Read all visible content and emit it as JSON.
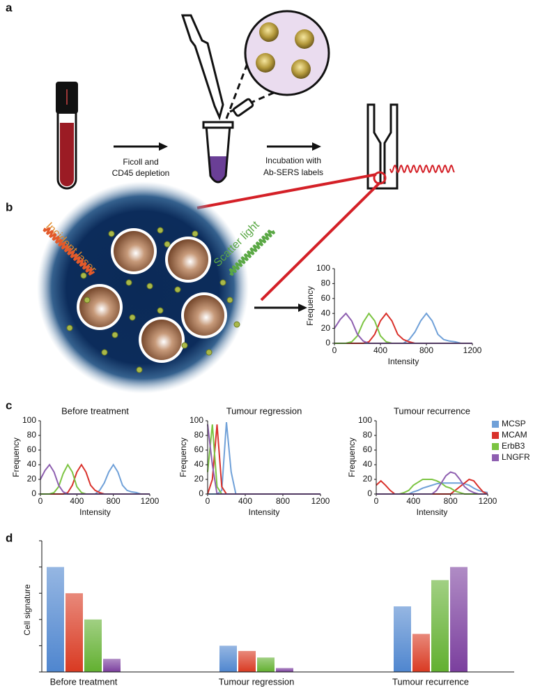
{
  "diagram": {
    "panel_labels": [
      "a",
      "b",
      "c",
      "d"
    ],
    "step1": [
      "Ficoll and",
      "CD45 depletion"
    ],
    "step2": [
      "Incubation with",
      "Ab-SERS labels"
    ],
    "incident": "Incident laser",
    "scatter": "Scatter light"
  },
  "chart_data": [
    {
      "type": "line",
      "x": [
        0,
        50,
        100,
        150,
        200,
        250,
        300,
        350,
        400,
        450,
        500,
        550,
        600,
        650,
        700,
        750,
        800,
        850,
        900,
        950,
        1000,
        1050,
        1100,
        1150,
        1200
      ],
      "series": [
        {
          "color": "#6fa0d8",
          "values": [
            0,
            0,
            0,
            0,
            0,
            0,
            0,
            0,
            0,
            0,
            0,
            0,
            0,
            5,
            15,
            30,
            40,
            30,
            12,
            5,
            3,
            2,
            0,
            0,
            0
          ]
        },
        {
          "color": "#d9312b",
          "values": [
            0,
            0,
            0,
            0,
            0,
            0,
            2,
            12,
            30,
            40,
            30,
            12,
            5,
            2,
            0,
            0,
            0,
            0,
            0,
            0,
            0,
            0,
            0,
            0,
            0
          ]
        },
        {
          "color": "#7cc442",
          "values": [
            0,
            0,
            0,
            2,
            10,
            28,
            40,
            30,
            10,
            2,
            0,
            0,
            0,
            0,
            0,
            0,
            0,
            0,
            0,
            0,
            0,
            0,
            0,
            0,
            0
          ]
        },
        {
          "color": "#8e5fb0",
          "values": [
            20,
            32,
            40,
            30,
            12,
            3,
            0,
            0,
            0,
            0,
            0,
            0,
            0,
            0,
            0,
            0,
            0,
            0,
            0,
            0,
            0,
            0,
            0,
            0,
            0
          ]
        }
      ],
      "xlabel": "Intensity",
      "ylabel": "Frequency",
      "xlim": [
        0,
        1200
      ],
      "ylim": [
        0,
        100
      ],
      "xticks": [
        0,
        400,
        800,
        1200
      ],
      "yticks": [
        0,
        20,
        40,
        60,
        80,
        100
      ]
    },
    {
      "type": "line",
      "title": "Before treatment",
      "x": [
        0,
        50,
        100,
        150,
        200,
        250,
        300,
        350,
        400,
        450,
        500,
        550,
        600,
        650,
        700,
        750,
        800,
        850,
        900,
        950,
        1000,
        1050,
        1100,
        1150,
        1200
      ],
      "series": [
        {
          "color": "#6fa0d8",
          "values": [
            0,
            0,
            0,
            0,
            0,
            0,
            0,
            0,
            0,
            0,
            0,
            0,
            0,
            5,
            15,
            30,
            40,
            30,
            12,
            5,
            3,
            2,
            0,
            0,
            0
          ]
        },
        {
          "color": "#d9312b",
          "values": [
            0,
            0,
            0,
            0,
            0,
            0,
            2,
            12,
            30,
            40,
            30,
            12,
            5,
            2,
            0,
            0,
            0,
            0,
            0,
            0,
            0,
            0,
            0,
            0,
            0
          ]
        },
        {
          "color": "#7cc442",
          "values": [
            0,
            0,
            0,
            2,
            10,
            28,
            40,
            30,
            10,
            2,
            0,
            0,
            0,
            0,
            0,
            0,
            0,
            0,
            0,
            0,
            0,
            0,
            0,
            0,
            0
          ]
        },
        {
          "color": "#8e5fb0",
          "values": [
            20,
            32,
            40,
            30,
            12,
            3,
            0,
            0,
            0,
            0,
            0,
            0,
            0,
            0,
            0,
            0,
            0,
            0,
            0,
            0,
            0,
            0,
            0,
            0,
            0
          ]
        }
      ],
      "xlabel": "Intensity",
      "ylabel": "Frequency",
      "xlim": [
        0,
        1200
      ],
      "ylim": [
        0,
        100
      ],
      "xticks": [
        0,
        400,
        800,
        1200
      ],
      "yticks": [
        0,
        20,
        40,
        60,
        80,
        100
      ]
    },
    {
      "type": "line",
      "title": "Tumour regression",
      "x": [
        0,
        50,
        100,
        150,
        200,
        250,
        300,
        350,
        400,
        450,
        500,
        550,
        600,
        650,
        700,
        750,
        800,
        850,
        900,
        950,
        1000,
        1050,
        1100,
        1150,
        1200
      ],
      "series": [
        {
          "color": "#6fa0d8",
          "values": [
            0,
            0,
            0,
            5,
            98,
            30,
            0,
            0,
            0,
            0,
            0,
            0,
            0,
            0,
            0,
            0,
            0,
            0,
            0,
            0,
            0,
            0,
            0,
            0,
            0
          ]
        },
        {
          "color": "#d9312b",
          "values": [
            0,
            20,
            95,
            10,
            0,
            0,
            0,
            0,
            0,
            0,
            0,
            0,
            0,
            0,
            0,
            0,
            0,
            0,
            0,
            0,
            0,
            0,
            0,
            0,
            0
          ]
        },
        {
          "color": "#7cc442",
          "values": [
            30,
            95,
            10,
            0,
            0,
            0,
            0,
            0,
            0,
            0,
            0,
            0,
            0,
            0,
            0,
            0,
            0,
            0,
            0,
            0,
            0,
            0,
            0,
            0,
            0
          ]
        },
        {
          "color": "#8e5fb0",
          "values": [
            95,
            40,
            0,
            0,
            0,
            0,
            0,
            0,
            0,
            0,
            0,
            0,
            0,
            0,
            0,
            0,
            0,
            0,
            0,
            0,
            0,
            0,
            0,
            0,
            0
          ]
        }
      ],
      "xlabel": "Intensity",
      "ylabel": "Frequency",
      "xlim": [
        0,
        1200
      ],
      "ylim": [
        0,
        100
      ],
      "xticks": [
        0,
        400,
        800,
        1200
      ],
      "yticks": [
        0,
        20,
        40,
        60,
        80,
        100
      ]
    },
    {
      "type": "line",
      "title": "Tumour recurrence",
      "x": [
        0,
        50,
        100,
        150,
        200,
        250,
        300,
        350,
        400,
        450,
        500,
        550,
        600,
        650,
        700,
        750,
        800,
        850,
        900,
        950,
        1000,
        1050,
        1100,
        1150,
        1200
      ],
      "series": [
        {
          "name": "MCSP",
          "color": "#6fa0d8",
          "values": [
            0,
            0,
            0,
            0,
            0,
            0,
            0,
            0,
            3,
            5,
            8,
            10,
            12,
            14,
            15,
            15,
            15,
            15,
            15,
            14,
            12,
            8,
            5,
            3,
            2
          ]
        },
        {
          "name": "MCAM",
          "color": "#d9312b",
          "values": [
            12,
            18,
            12,
            5,
            0,
            0,
            0,
            0,
            0,
            0,
            0,
            0,
            0,
            0,
            0,
            0,
            0,
            5,
            10,
            15,
            20,
            18,
            10,
            3,
            0
          ]
        },
        {
          "name": "ErbB3",
          "color": "#7cc442",
          "values": [
            0,
            0,
            0,
            0,
            0,
            0,
            2,
            5,
            12,
            16,
            20,
            20,
            20,
            18,
            15,
            10,
            8,
            4,
            2,
            0,
            0,
            0,
            0,
            0,
            0
          ]
        },
        {
          "name": "LNGFR",
          "color": "#8e5fb0",
          "values": [
            0,
            0,
            0,
            0,
            0,
            0,
            0,
            0,
            0,
            0,
            0,
            0,
            0,
            5,
            15,
            25,
            30,
            28,
            20,
            10,
            5,
            2,
            0,
            0,
            0
          ]
        }
      ],
      "xlabel": "Intensity",
      "ylabel": "Frequency",
      "xlim": [
        0,
        1200
      ],
      "ylim": [
        0,
        100
      ],
      "xticks": [
        0,
        400,
        800,
        1200
      ],
      "yticks": [
        0,
        20,
        40,
        60,
        80,
        100
      ],
      "legend": "right"
    },
    {
      "type": "bar",
      "categories": [
        "Before treatment",
        "Tumour regression",
        "Tumour recurrence"
      ],
      "series": [
        {
          "color": "#4f86cf",
          "values": [
            80,
            20,
            50
          ]
        },
        {
          "color": "#d93a22",
          "values": [
            60,
            16,
            29
          ]
        },
        {
          "color": "#62b030",
          "values": [
            40,
            11,
            70
          ]
        },
        {
          "color": "#7b3f9e",
          "values": [
            10,
            3,
            80
          ]
        }
      ],
      "ylabel": "Cell signature",
      "ylim": [
        0,
        100
      ],
      "yticks": [
        0,
        20,
        40,
        60,
        80,
        100
      ],
      "ytick_labels": false
    }
  ]
}
